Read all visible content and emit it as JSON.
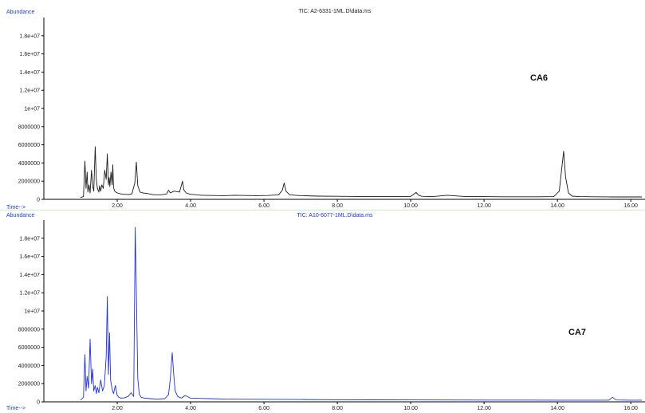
{
  "colors": {
    "panel_top_trace": "#1a1a1a",
    "panel_bottom_trace": "#1f2fe0",
    "axis": "#000000",
    "axis_title": "#1a3fd6",
    "divider": "#8fd98f",
    "plot_bg": "#ffffff"
  },
  "chart_data": [
    {
      "type": "line",
      "title": "TIC: A2-6331-1ML.D\\data.ms",
      "ylabel": "Abundance",
      "xlabel": "Time-->",
      "sample_label": "CA6",
      "xlim": [
        0.0,
        16.3
      ],
      "ylim": [
        0,
        20000000
      ],
      "x_ticks": [
        2,
        4,
        6,
        8,
        10,
        12,
        14,
        16
      ],
      "x_tick_labels": [
        "2.00",
        "4.00",
        "6.00",
        "8.00",
        "10.00",
        "12.00",
        "14.00",
        "16.00"
      ],
      "y_ticks": [
        0,
        2000000,
        4000000,
        6000000,
        8000000,
        10000000,
        12000000,
        14000000,
        16000000,
        18000000
      ],
      "y_tick_labels": [
        "0",
        "2000000",
        "4000000",
        "6000000",
        "8000000",
        "1e+07",
        "1.2e+07",
        "1.4e+07",
        "1.6e+07",
        "1.8e+07"
      ],
      "series": [
        {
          "x": [
            1.0,
            1.08,
            1.12,
            1.15,
            1.18,
            1.2,
            1.23,
            1.26,
            1.3,
            1.33,
            1.36,
            1.4,
            1.43,
            1.46,
            1.5,
            1.52,
            1.55,
            1.58,
            1.62,
            1.66,
            1.7,
            1.73,
            1.76,
            1.78,
            1.8,
            1.83,
            1.86,
            1.88,
            1.9,
            1.93,
            1.96,
            2.0,
            2.1,
            2.2,
            2.3,
            2.4,
            2.48,
            2.52,
            2.56,
            2.62,
            2.7,
            2.8,
            3.0,
            3.2,
            3.35,
            3.4,
            3.45,
            3.55,
            3.7,
            3.78,
            3.82,
            3.88,
            4.0,
            4.3,
            4.6,
            4.9,
            5.2,
            5.5,
            5.8,
            6.1,
            6.4,
            6.5,
            6.55,
            6.6,
            6.7,
            7.0,
            7.5,
            8.0,
            8.5,
            9.0,
            9.5,
            10.0,
            10.15,
            10.22,
            10.3,
            10.6,
            11.0,
            11.5,
            12.0,
            12.5,
            13.0,
            13.5,
            13.9,
            14.05,
            14.12,
            14.17,
            14.22,
            14.3,
            14.4,
            14.6,
            15.0,
            15.5,
            16.0,
            16.3
          ],
          "y": [
            200000,
            300000,
            4200000,
            1200000,
            3000000,
            800000,
            1600000,
            700000,
            3200000,
            1500000,
            900000,
            5800000,
            2200000,
            1200000,
            800000,
            1500000,
            900000,
            1600000,
            1200000,
            3200000,
            2200000,
            5000000,
            1600000,
            2400000,
            1400000,
            3000000,
            1600000,
            3800000,
            1300000,
            900000,
            800000,
            700000,
            600000,
            550000,
            520000,
            600000,
            1800000,
            4100000,
            1500000,
            800000,
            700000,
            650000,
            500000,
            500000,
            600000,
            1000000,
            700000,
            900000,
            800000,
            2000000,
            1000000,
            700000,
            550000,
            450000,
            420000,
            400000,
            450000,
            420000,
            400000,
            420000,
            500000,
            1000000,
            1800000,
            900000,
            500000,
            400000,
            350000,
            330000,
            320000,
            300000,
            300000,
            320000,
            750000,
            450000,
            330000,
            300000,
            450000,
            300000,
            300000,
            280000,
            280000,
            280000,
            300000,
            900000,
            3500000,
            5300000,
            2500000,
            700000,
            350000,
            300000,
            280000,
            260000,
            260000,
            260000
          ]
        }
      ]
    },
    {
      "type": "line",
      "title": "TIC: A10-6077-1ML.D\\data.ms",
      "ylabel": "Abundance",
      "xlabel": "Time-->",
      "sample_label": "CA7",
      "xlim": [
        0.0,
        16.3
      ],
      "ylim": [
        0,
        20000000
      ],
      "x_ticks": [
        2,
        4,
        6,
        8,
        10,
        12,
        14,
        16
      ],
      "x_tick_labels": [
        "2.00",
        "4.00",
        "6.00",
        "8.00",
        "10.00",
        "12.00",
        "14.00",
        "16.00"
      ],
      "y_ticks": [
        0,
        2000000,
        4000000,
        6000000,
        8000000,
        10000000,
        12000000,
        14000000,
        16000000,
        18000000
      ],
      "y_tick_labels": [
        "0",
        "2000000",
        "4000000",
        "6000000",
        "8000000",
        "1e+07",
        "1.2e+07",
        "1.4e+07",
        "1.6e+07",
        "1.8e+07"
      ],
      "series": [
        {
          "x": [
            1.0,
            1.08,
            1.12,
            1.15,
            1.18,
            1.22,
            1.26,
            1.3,
            1.33,
            1.36,
            1.4,
            1.43,
            1.46,
            1.5,
            1.55,
            1.6,
            1.65,
            1.7,
            1.73,
            1.76,
            1.79,
            1.82,
            1.86,
            1.9,
            1.95,
            2.0,
            2.05,
            2.1,
            2.2,
            2.3,
            2.38,
            2.45,
            2.49,
            2.52,
            2.56,
            2.6,
            2.65,
            2.75,
            2.9,
            3.1,
            3.3,
            3.4,
            3.45,
            3.5,
            3.54,
            3.58,
            3.65,
            3.75,
            3.85,
            4.0,
            4.5,
            5.0,
            6.0,
            7.0,
            8.0,
            9.0,
            10.0,
            11.0,
            12.0,
            13.0,
            14.0,
            15.0,
            15.4,
            15.5,
            15.6,
            16.0,
            16.3
          ],
          "y": [
            200000,
            500000,
            5200000,
            1200000,
            2800000,
            1500000,
            6900000,
            2000000,
            3600000,
            1200000,
            1800000,
            900000,
            1600000,
            1000000,
            2400000,
            1200000,
            1800000,
            5000000,
            11600000,
            3000000,
            7600000,
            2400000,
            1400000,
            900000,
            1800000,
            700000,
            500000,
            400000,
            450000,
            600000,
            1000000,
            600000,
            19200000,
            12200000,
            2600000,
            900000,
            500000,
            400000,
            350000,
            300000,
            350000,
            800000,
            2600000,
            5400000,
            3000000,
            1200000,
            600000,
            400000,
            700000,
            400000,
            350000,
            300000,
            280000,
            250000,
            230000,
            220000,
            210000,
            200000,
            190000,
            190000,
            180000,
            180000,
            180000,
            500000,
            200000,
            180000,
            180000
          ]
        }
      ]
    }
  ]
}
